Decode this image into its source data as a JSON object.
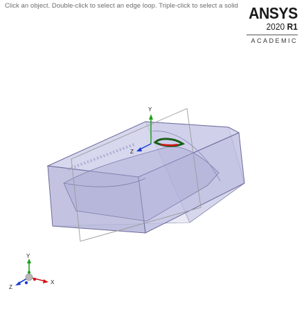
{
  "status": {
    "hint": "Click an object. Double-click to select an edge loop. Triple-click to select a solid"
  },
  "brand": {
    "name": "ANSYS",
    "version_year": "2020",
    "version_release": "R1",
    "edition": "ACADEMIC"
  },
  "triad": {
    "x_label": "X",
    "y_label": "Y",
    "z_label": "Z"
  },
  "colors": {
    "body_fill": "#b9b9dd",
    "body_edge": "#6a6a9a",
    "plane_edge": "#8a8a8a",
    "x_axis": "#d01515",
    "y_axis": "#18a018",
    "z_axis": "#1a3ad0",
    "selected_edge": "#1a5e1a"
  }
}
